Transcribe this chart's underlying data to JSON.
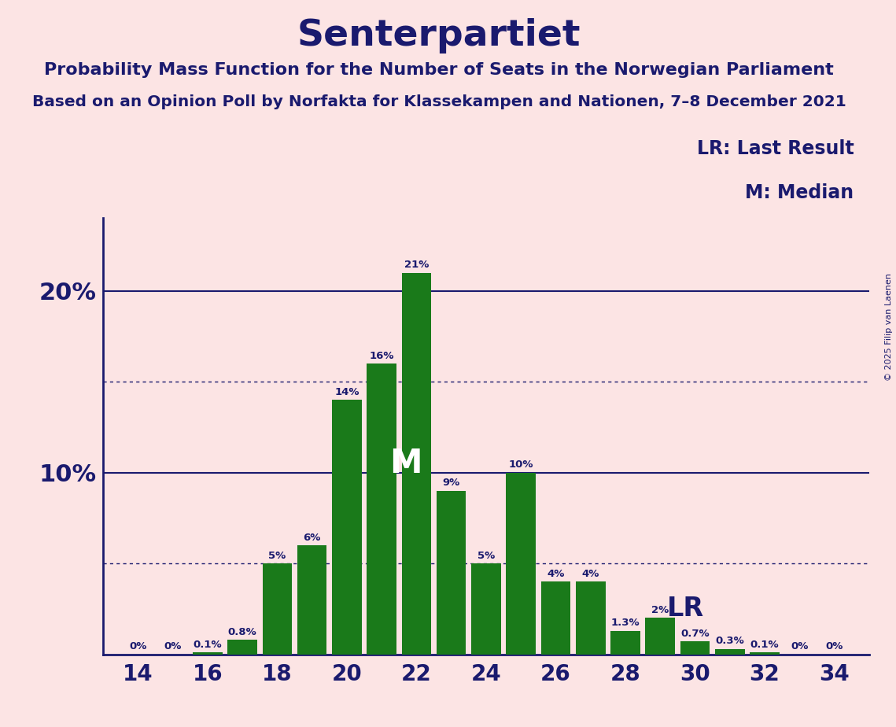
{
  "title": "Senterpartiet",
  "subtitle1": "Probability Mass Function for the Number of Seats in the Norwegian Parliament",
  "subtitle2": "Based on an Opinion Poll by Norfakta for Klassekampen and Nationen, 7–8 December 2021",
  "copyright": "© 2025 Filip van Laenen",
  "legend_lr": "LR: Last Result",
  "legend_m": "M: Median",
  "background_color": "#fce4e4",
  "bar_color": "#1a7a1a",
  "text_color": "#1a1a6e",
  "seats": [
    14,
    15,
    16,
    17,
    18,
    19,
    20,
    21,
    22,
    23,
    24,
    25,
    26,
    27,
    28,
    29,
    30,
    31,
    32,
    33,
    34
  ],
  "probabilities": [
    0.0,
    0.0,
    0.1,
    0.8,
    5.0,
    6.0,
    14.0,
    16.0,
    21.0,
    9.0,
    5.0,
    10.0,
    4.0,
    4.0,
    1.3,
    2.0,
    0.7,
    0.3,
    0.1,
    0.0,
    0.0
  ],
  "labels": [
    "0%",
    "0%",
    "0.1%",
    "0.8%",
    "5%",
    "6%",
    "14%",
    "16%",
    "21%",
    "9%",
    "5%",
    "10%",
    "4%",
    "4%",
    "1.3%",
    "2%",
    "0.7%",
    "0.3%",
    "0.1%",
    "0%",
    "0%"
  ],
  "median_seat": 22,
  "lr_seat": 28,
  "ylim": [
    0,
    24
  ],
  "solid_lines": [
    10.0,
    20.0
  ],
  "dotted_lines": [
    5.0,
    15.0
  ],
  "xtick_seats": [
    14,
    16,
    18,
    20,
    22,
    24,
    26,
    28,
    30,
    32,
    34
  ]
}
